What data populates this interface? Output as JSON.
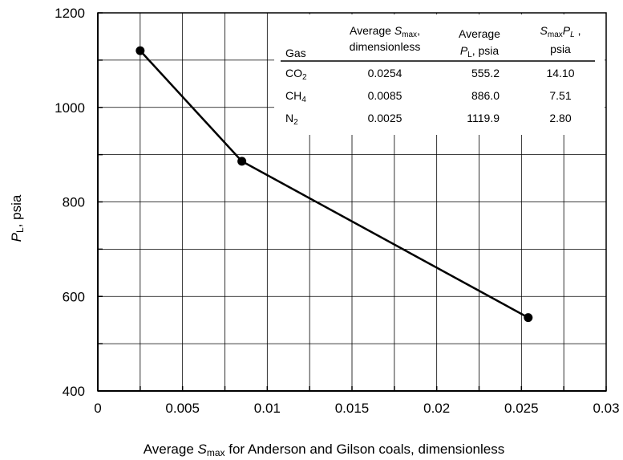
{
  "chart_data": {
    "type": "line",
    "x": [
      0.0025,
      0.0085,
      0.0254
    ],
    "series": [
      {
        "values": [
          1119.9,
          886.0,
          555.2
        ]
      }
    ],
    "xlim": [
      0,
      0.03
    ],
    "ylim": [
      400,
      1200
    ],
    "x_ticks": [
      "0",
      "0.005",
      "0.01",
      "0.015",
      "0.02",
      "0.025",
      "0.03"
    ],
    "y_ticks": [
      "400",
      "600",
      "800",
      "1000",
      "1200"
    ],
    "xlabel": {
      "pre": "Average ",
      "var": "S",
      "sub": "max",
      "post": " for Anderson and Gilson coals, dimensionless"
    },
    "ylabel": {
      "var": "P",
      "sub": "L",
      "post": ", psia"
    },
    "grid": true,
    "line_color": "#000000",
    "marker": "filled-circle"
  },
  "table": {
    "headers": {
      "gas": "Gas",
      "smax": {
        "pre": "Average ",
        "var": "S",
        "sub": "max",
        "post": ",",
        "line2": "dimensionless"
      },
      "pl": {
        "line1": "Average",
        "var": "P",
        "sub": "L",
        "post": ", psia"
      },
      "product": {
        "var1": "S",
        "sub1": "max",
        "var2": "P",
        "sub2": "L",
        "post": " ,",
        "line2": "psia"
      }
    },
    "rows": [
      {
        "gas": "CO",
        "gas_sub": "2",
        "smax": "0.0254",
        "pl": "555.2",
        "product": "14.10"
      },
      {
        "gas": "CH",
        "gas_sub": "4",
        "smax": "0.0085",
        "pl": "886.0",
        "product": "7.51"
      },
      {
        "gas": "N",
        "gas_sub": "2",
        "smax": "0.0025",
        "pl": "1119.9",
        "product": "2.80"
      }
    ]
  }
}
